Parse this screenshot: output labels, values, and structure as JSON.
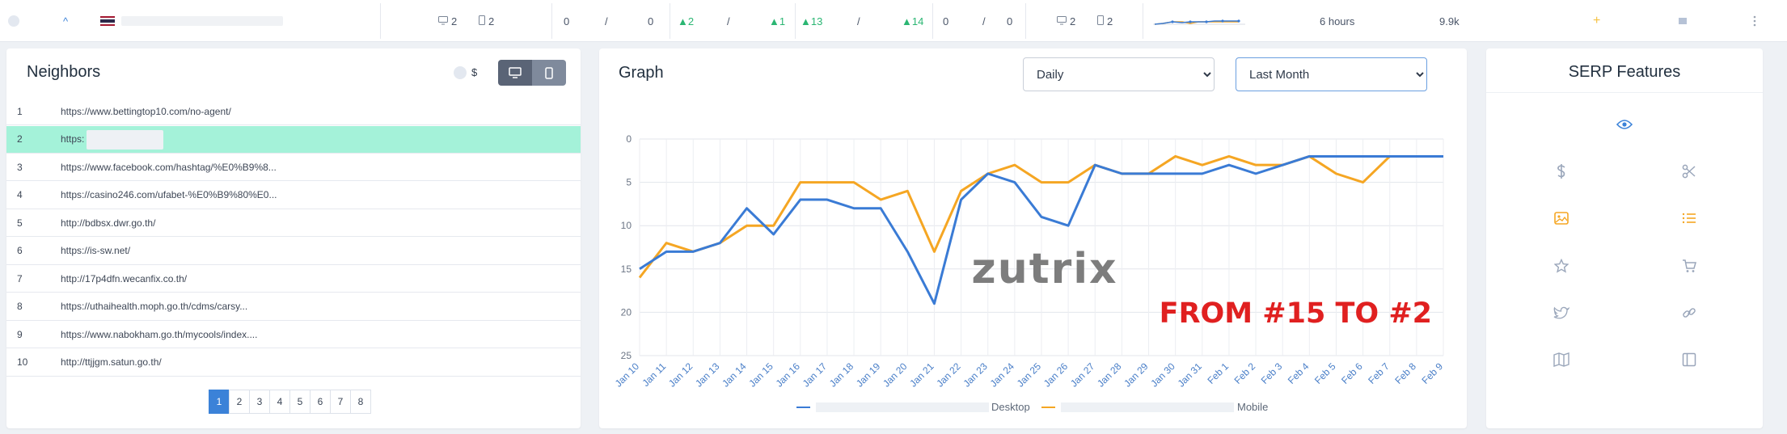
{
  "topbar": {
    "chevron": "^",
    "col_a_desktop": "2",
    "col_a_mobile": "2",
    "col_b_left": "0",
    "col_b_sep": "/",
    "col_b_right": "0",
    "col_c_left": "▲2",
    "col_c_sep": "/",
    "col_c_right": "▲1",
    "col_d_left": "▲13",
    "col_d_sep": "/",
    "col_d_right": "▲14",
    "col_e_left": "0",
    "col_e_sep": "/",
    "col_e_right": "0",
    "col_f_desktop": "2",
    "col_f_mobile": "2",
    "time": "6 hours",
    "volume": "9.9k",
    "plus": "+"
  },
  "neighbors": {
    "title": "Neighbors",
    "currency_label": "$",
    "rows": [
      {
        "num": "1",
        "url": "https://www.bettingtop10.com/no-agent/"
      },
      {
        "num": "2",
        "url": "https:"
      },
      {
        "num": "3",
        "url": "https://www.facebook.com/hashtag/%E0%B9%8..."
      },
      {
        "num": "4",
        "url": "https://casino246.com/ufabet-%E0%B9%80%E0..."
      },
      {
        "num": "5",
        "url": "http://bdbsx.dwr.go.th/"
      },
      {
        "num": "6",
        "url": "https://is-sw.net/"
      },
      {
        "num": "7",
        "url": "http://17p4dfn.wecanfix.co.th/"
      },
      {
        "num": "8",
        "url": "https://uthaihealth.moph.go.th/cdms/carsy..."
      },
      {
        "num": "9",
        "url": "https://www.nabokham.go.th/mycools/index...."
      },
      {
        "num": "10",
        "url": "http://ttjjgm.satun.go.th/"
      }
    ],
    "pages": [
      "1",
      "2",
      "3",
      "4",
      "5",
      "6",
      "7",
      "8"
    ]
  },
  "graph": {
    "title": "Graph",
    "period_select": "Daily",
    "range_select": "Last Month",
    "watermark": "zutrix",
    "overlay": "FROM #15 TO #2",
    "legend_desktop": "Desktop",
    "legend_mobile": "Mobile"
  },
  "serp": {
    "title": "SERP Features",
    "icons": [
      "eye-icon",
      "dollar-icon",
      "scissors-icon",
      "image-icon",
      "list-icon",
      "star-icon",
      "cart-icon",
      "twitter-icon",
      "link-icon",
      "map-icon",
      "panel-icon"
    ]
  },
  "colors": {
    "desktop": "#3a7bd5",
    "mobile": "#f5a623",
    "accent": "#3b82d8",
    "highlight": "#a4f2d9",
    "overlay": "#e02020"
  },
  "chart_data": {
    "type": "line",
    "categories": [
      "Jan 10",
      "Jan 11",
      "Jan 12",
      "Jan 13",
      "Jan 14",
      "Jan 15",
      "Jan 16",
      "Jan 17",
      "Jan 18",
      "Jan 19",
      "Jan 20",
      "Jan 21",
      "Jan 22",
      "Jan 23",
      "Jan 24",
      "Jan 25",
      "Jan 26",
      "Jan 27",
      "Jan 28",
      "Jan 29",
      "Jan 30",
      "Jan 31",
      "Feb 1",
      "Feb 2",
      "Feb 3",
      "Feb 4",
      "Feb 5",
      "Feb 6",
      "Feb 7",
      "Feb 8",
      "Feb 9"
    ],
    "series": [
      {
        "name": "Desktop",
        "values": [
          15,
          13,
          13,
          12,
          8,
          11,
          7,
          7,
          8,
          8,
          13,
          19,
          7,
          4,
          5,
          9,
          10,
          3,
          4,
          4,
          4,
          4,
          3,
          4,
          3,
          2,
          2,
          2,
          2,
          2,
          2
        ]
      },
      {
        "name": "Mobile",
        "values": [
          16,
          12,
          13,
          12,
          10,
          10,
          5,
          5,
          5,
          7,
          6,
          13,
          6,
          4,
          3,
          5,
          5,
          3,
          4,
          4,
          2,
          3,
          2,
          3,
          3,
          2,
          4,
          5,
          2,
          null,
          null
        ]
      }
    ],
    "yticks": [
      0,
      5,
      10,
      15,
      20,
      25
    ],
    "ylim": [
      0,
      25
    ],
    "y_inverted": true,
    "grid": true,
    "legend": "bottom"
  }
}
